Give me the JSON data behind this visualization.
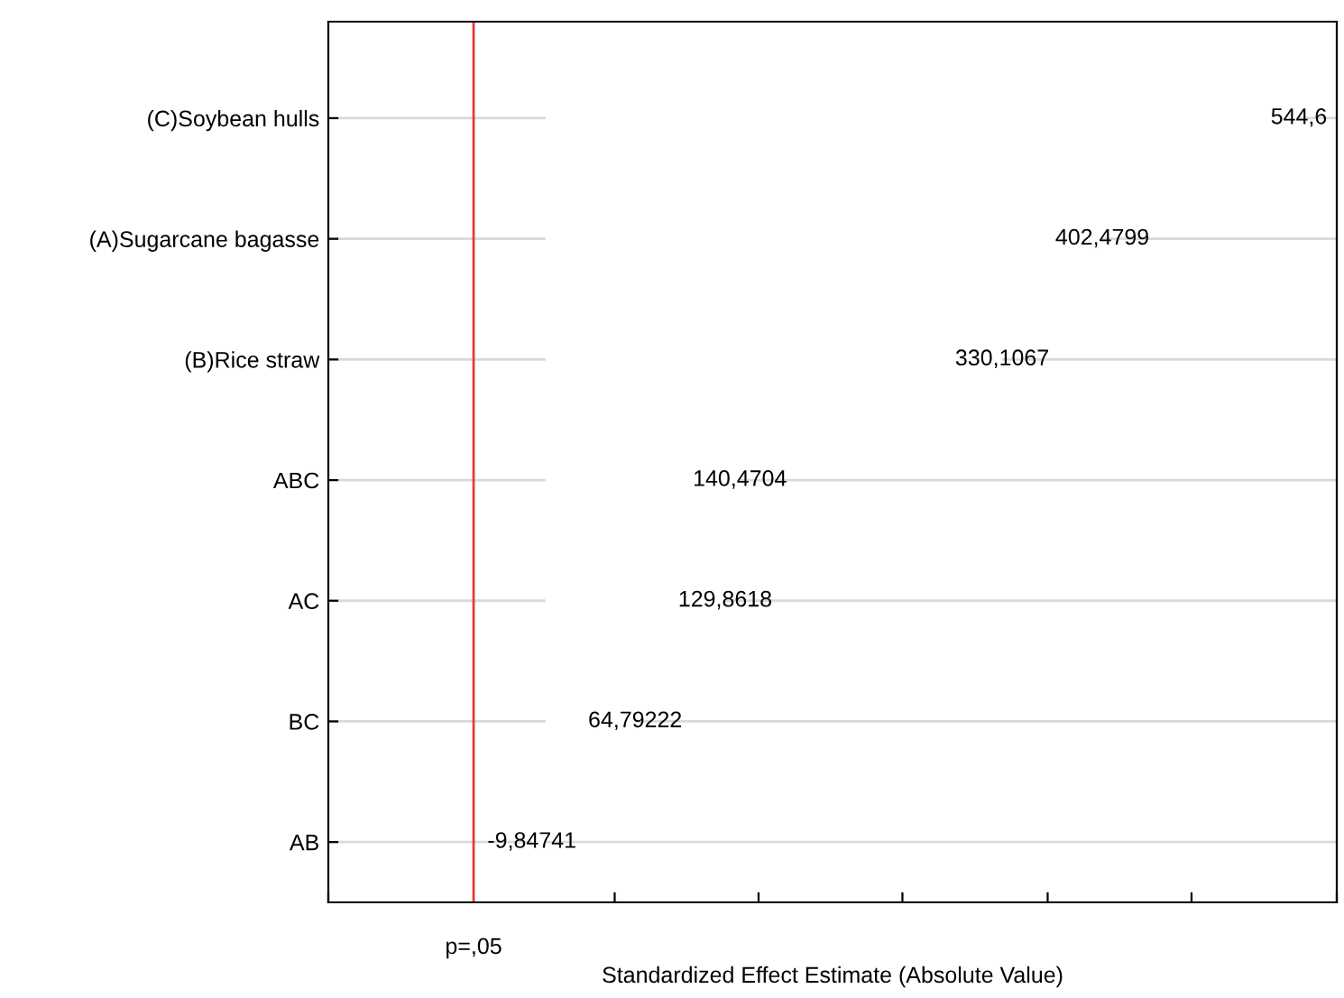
{
  "chart_data": {
    "type": "bar",
    "orientation": "horizontal",
    "xlabel": "Standardized Effect Estimate (Absolute Value)",
    "categories": [
      "(C)Soybean hulls",
      "(A)Sugarcane bagasse",
      "(B)Rice straw",
      "ABC",
      "AC",
      "BC",
      "AB"
    ],
    "values": [
      544.6,
      402.4799,
      330.1067,
      140.4704,
      129.8618,
      64.79222,
      -9.84741
    ],
    "value_labels": [
      "544,6",
      "402,4799",
      "330,1067",
      "140,4704",
      "129,8618",
      "64,79222",
      "-9,84741"
    ],
    "color": "#ffffff",
    "xlim": [
      -157,
      572
    ],
    "xticks": [
      {
        "value": -157,
        "label": null
      },
      {
        "value": 50,
        "label": null
      },
      {
        "value": 154,
        "label": null
      },
      {
        "value": 258,
        "label": null
      },
      {
        "value": 363,
        "label": null
      },
      {
        "value": 467,
        "label": null
      },
      {
        "value": 572,
        "label": null
      }
    ],
    "ref_lines": [
      {
        "axis": "x",
        "value": -52,
        "label": "p=,05",
        "color": "#e03c3c"
      }
    ],
    "grid": "y"
  }
}
